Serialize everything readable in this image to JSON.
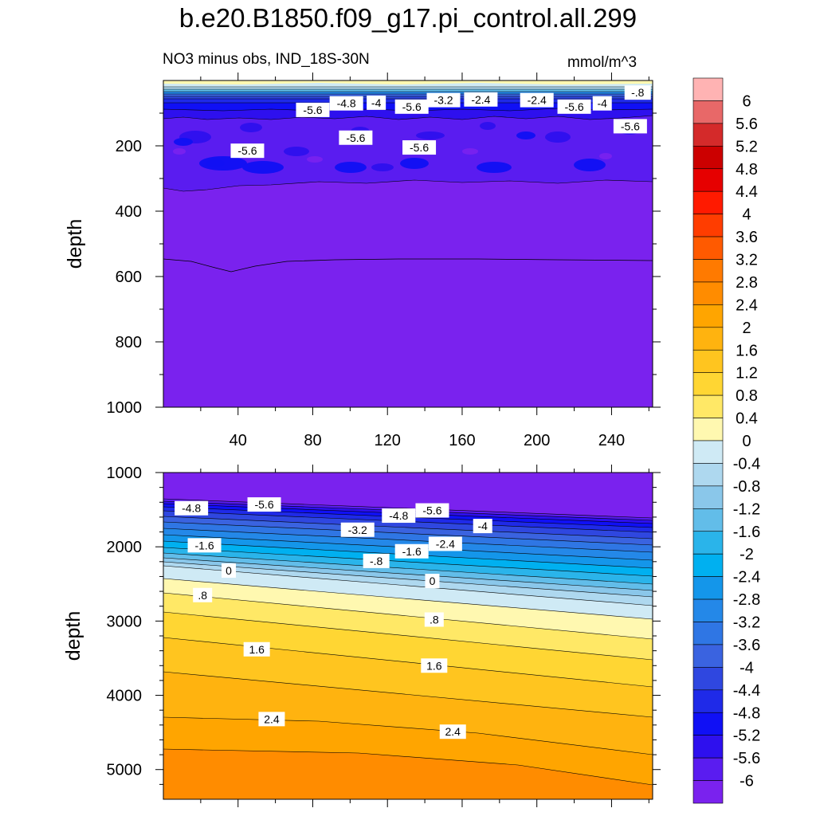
{
  "title": "b.e20.B1850.f09_g17.pi_control.all.299",
  "subtitle": "NO3 minus obs, IND_18S-30N",
  "units": "mmol/m^3",
  "chart_data": [
    {
      "type": "contour",
      "panel": "upper",
      "title": "NO3 minus obs, IND_18S-30N",
      "xlabel": "",
      "ylabel": "depth",
      "xlim": [
        0,
        262
      ],
      "ylim": [
        1000,
        0
      ],
      "x_ticks": [
        40,
        80,
        120,
        160,
        200,
        240
      ],
      "y_ticks": [
        200,
        400,
        600,
        800,
        1000
      ],
      "contour_labels": [
        {
          "text": "-5.6",
          "x": 80,
          "y": 90
        },
        {
          "text": "-4.8",
          "x": 98,
          "y": 70
        },
        {
          "text": "-4",
          "x": 114,
          "y": 68
        },
        {
          "text": "-5.6",
          "x": 133,
          "y": 80
        },
        {
          "text": "-3.2",
          "x": 150,
          "y": 60
        },
        {
          "text": "-2.4",
          "x": 170,
          "y": 58
        },
        {
          "text": "-2.4",
          "x": 200,
          "y": 60
        },
        {
          "text": "-5.6",
          "x": 220,
          "y": 80
        },
        {
          "text": "-4",
          "x": 235,
          "y": 70
        },
        {
          "text": "-.8",
          "x": 254,
          "y": 37
        },
        {
          "text": "-5.6",
          "x": 250,
          "y": 140
        },
        {
          "text": "-5.6",
          "x": 45,
          "y": 215
        },
        {
          "text": "-5.6",
          "x": 103,
          "y": 175
        },
        {
          "text": "-5.6",
          "x": 137,
          "y": 205
        }
      ]
    },
    {
      "type": "contour",
      "panel": "lower",
      "xlabel": "",
      "ylabel": "depth",
      "xlim": [
        0,
        262
      ],
      "ylim": [
        5400,
        1000
      ],
      "y_ticks": [
        1000,
        2000,
        3000,
        4000,
        5000
      ],
      "contour_labels": [
        {
          "text": "-4.8",
          "x": 15,
          "y": 1480
        },
        {
          "text": "-5.6",
          "x": 54,
          "y": 1430
        },
        {
          "text": "-4.8",
          "x": 126,
          "y": 1580
        },
        {
          "text": "-5.6",
          "x": 144,
          "y": 1510
        },
        {
          "text": "-4",
          "x": 171,
          "y": 1720
        },
        {
          "text": "-3.2",
          "x": 104,
          "y": 1770
        },
        {
          "text": "-2.4",
          "x": 151,
          "y": 1960
        },
        {
          "text": "-1.6",
          "x": 22,
          "y": 1980
        },
        {
          "text": "-1.6",
          "x": 133,
          "y": 2060
        },
        {
          "text": "-.8",
          "x": 114,
          "y": 2190
        },
        {
          "text": "0",
          "x": 35,
          "y": 2320
        },
        {
          "text": "0",
          "x": 144,
          "y": 2460
        },
        {
          "text": ".8",
          "x": 21,
          "y": 2650
        },
        {
          "text": ".8",
          "x": 145,
          "y": 2980
        },
        {
          "text": "1.6",
          "x": 50,
          "y": 3380
        },
        {
          "text": "1.6",
          "x": 145,
          "y": 3600
        },
        {
          "text": "2.4",
          "x": 58,
          "y": 4320
        },
        {
          "text": "2.4",
          "x": 155,
          "y": 4490
        }
      ]
    }
  ],
  "colorbar": {
    "units": "mmol/m^3",
    "labels": [
      "6",
      "5.6",
      "5.2",
      "4.8",
      "4.4",
      "4",
      "3.6",
      "3.2",
      "2.8",
      "2.4",
      "2",
      "1.6",
      "1.2",
      "0.8",
      "0.4",
      "0",
      "-0.4",
      "-0.8",
      "-1.2",
      "-1.6",
      "-2",
      "-2.4",
      "-2.8",
      "-3.2",
      "-3.6",
      "-4",
      "-4.4",
      "-4.8",
      "-5.2",
      "-5.6",
      "-6"
    ],
    "colors": [
      "#ffb3b3",
      "#e86868",
      "#d42a2a",
      "#cc0000",
      "#e60000",
      "#ff1a00",
      "#ff3d00",
      "#ff5a00",
      "#ff7a00",
      "#ff8c00",
      "#ffa500",
      "#ffb30f",
      "#ffc51f",
      "#ffd633",
      "#ffe866",
      "#fff8b0",
      "#cfeaf5",
      "#aed8ef",
      "#8ac7ea",
      "#62bde9",
      "#2ab4ea",
      "#00b0f0",
      "#1496ea",
      "#2488e8",
      "#2f76e4",
      "#3a63e0",
      "#2f47e0",
      "#1f2ae8",
      "#1010f5",
      "#2e10ee",
      "#5a1cf0",
      "#7a22ee"
    ]
  },
  "colors": {
    "deep_violet": "#7a22ee",
    "background": "#ffffff"
  }
}
